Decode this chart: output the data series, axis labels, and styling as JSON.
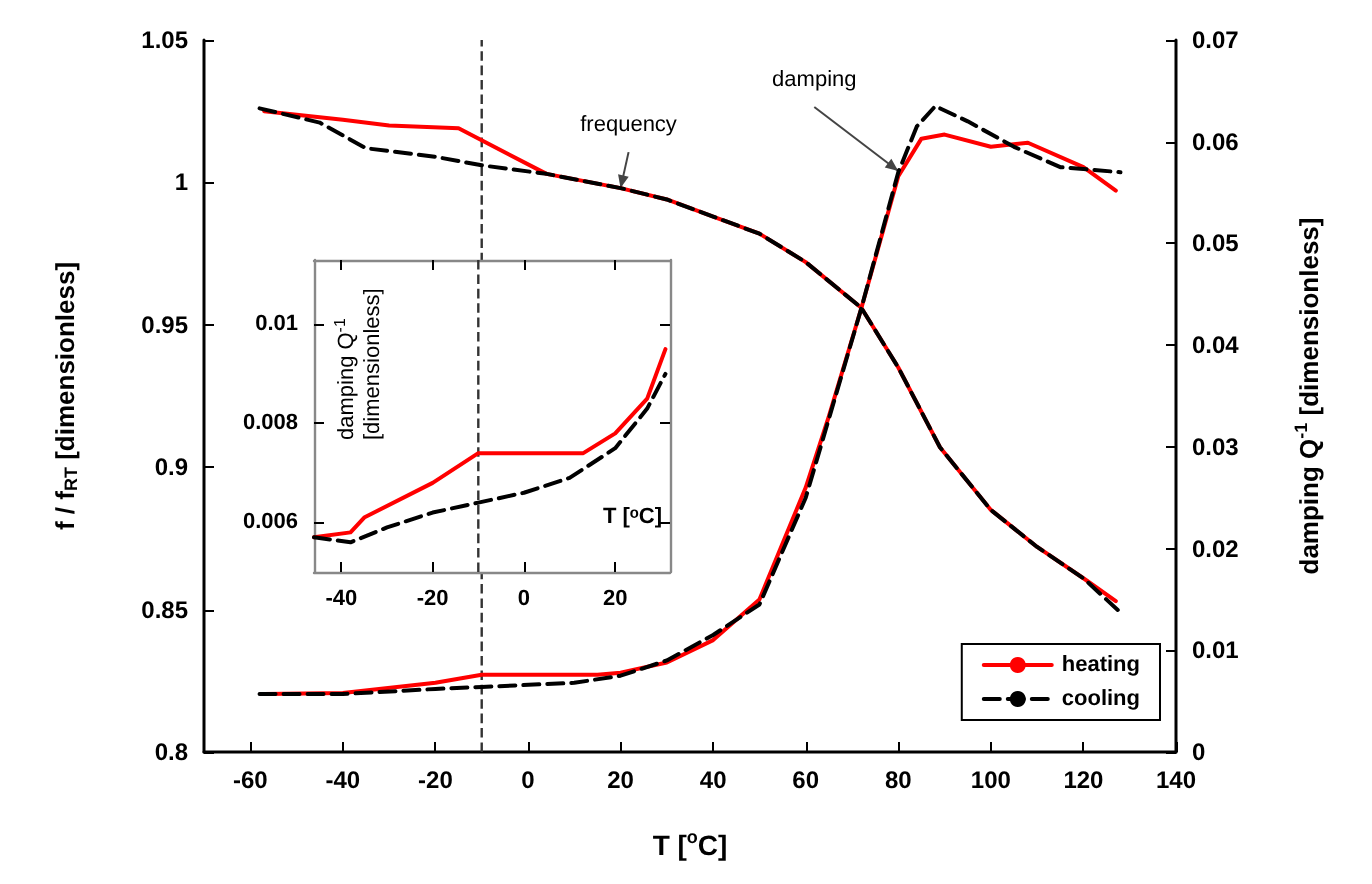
{
  "chart_data": [
    {
      "type": "line",
      "xlabel": "T [$^{o}$C]",
      "ylabel": "f / f$_{RT}$ [dimensionless]",
      "y2label": "damping Q$^{-1}$ [dimensionless]",
      "xlim": [
        -70,
        140
      ],
      "xticks": [
        -60,
        -40,
        -20,
        0,
        20,
        40,
        60,
        80,
        100,
        120,
        140
      ],
      "ylim": [
        0.8,
        1.05
      ],
      "yticks": [
        0.8,
        0.85,
        0.9,
        0.95,
        1,
        1.05
      ],
      "y2lim": [
        0,
        0.07
      ],
      "y2ticks": [
        0,
        0.01,
        0.02,
        0.03,
        0.04,
        0.05,
        0.06,
        0.07
      ],
      "grid": false,
      "legend": "bottom right",
      "marker": "none",
      "ref_lines": [
        {
          "axis": "x",
          "value": -10,
          "color": "#333333",
          "line_style": "dashed"
        }
      ],
      "annotations": [
        {
          "text": "frequency",
          "x": 20,
          "y": 0.998
        },
        {
          "text": "damping",
          "x": 80,
          "y": 1.004
        }
      ],
      "series": [
        {
          "name": "heating",
          "color": "#ff0000",
          "line_style": "solid",
          "x": [
            -57,
            -40,
            -30,
            -15,
            4,
            20,
            30,
            40,
            50,
            60,
            72,
            80,
            89,
            100,
            110,
            120,
            127
          ],
          "values": [
            1.025,
            1.022,
            1.02,
            1.019,
            1.003,
            0.998,
            0.994,
            0.988,
            0.982,
            0.972,
            0.956,
            0.935,
            0.907,
            0.885,
            0.872,
            0.861,
            0.853
          ]
        },
        {
          "name": "cooling",
          "color": "#000000",
          "line_style": "dashed",
          "x": [
            -58,
            -45,
            -35,
            -20,
            -10,
            4,
            20,
            30,
            40,
            50,
            60,
            72,
            80,
            89,
            100,
            110,
            120,
            128
          ],
          "values": [
            1.026,
            1.021,
            1.012,
            1.009,
            1.006,
            1.003,
            0.998,
            0.994,
            0.988,
            0.982,
            0.972,
            0.956,
            0.935,
            0.907,
            0.885,
            0.872,
            0.861,
            0.849
          ]
        },
        {
          "color": "#ff0000",
          "line_style": "solid",
          "axis": "y2",
          "x": [
            -57,
            -40,
            -20,
            -10,
            15,
            20,
            30,
            40,
            50,
            60,
            65,
            72,
            80,
            85,
            90,
            100,
            108,
            120,
            127
          ],
          "values": [
            0.0057,
            0.0058,
            0.0068,
            0.0076,
            0.0076,
            0.0078,
            0.0088,
            0.011,
            0.015,
            0.026,
            0.033,
            0.0436,
            0.0566,
            0.0603,
            0.0607,
            0.0595,
            0.0599,
            0.0575,
            0.0552
          ]
        },
        {
          "color": "#000000",
          "line_style": "dashed",
          "axis": "y2",
          "x": [
            -58,
            -40,
            -20,
            -10,
            10,
            20,
            30,
            40,
            50,
            60,
            72,
            80,
            84,
            88,
            95,
            105,
            115,
            128
          ],
          "values": [
            0.0057,
            0.0057,
            0.0062,
            0.0064,
            0.0068,
            0.0075,
            0.009,
            0.0115,
            0.0145,
            0.025,
            0.0436,
            0.057,
            0.0615,
            0.0635,
            0.062,
            0.0595,
            0.0575,
            0.057
          ]
        }
      ]
    },
    {
      "type": "line",
      "xlabel": "T [ᵒC]",
      "ylabel": "damping Q$^{-1}$ [dimensionless]",
      "xlim": [
        -46,
        32
      ],
      "xticks": [
        -40,
        -20,
        0,
        20
      ],
      "ylim": [
        0.005,
        0.0113
      ],
      "yticks": [
        0.006,
        0.008,
        0.01
      ],
      "grid": false,
      "marker": "none",
      "ref_lines": [
        {
          "axis": "x",
          "value": -10,
          "color": "#333333",
          "line_style": "dashed"
        }
      ],
      "series": [
        {
          "color": "#ff0000",
          "line_style": "solid",
          "x": [
            -46,
            -38,
            -35,
            -20,
            -10,
            -5,
            13,
            20,
            27,
            31
          ],
          "values": [
            0.0057,
            0.0058,
            0.0061,
            0.0068,
            0.0074,
            0.0074,
            0.0074,
            0.0078,
            0.0085,
            0.0095
          ]
        },
        {
          "color": "#000000",
          "line_style": "dashed",
          "x": [
            -46,
            -38,
            -30,
            -20,
            -10,
            0,
            10,
            20,
            27,
            31
          ],
          "values": [
            0.0057,
            0.0056,
            0.0059,
            0.0062,
            0.0064,
            0.0066,
            0.0069,
            0.0075,
            0.0083,
            0.009
          ]
        }
      ]
    }
  ]
}
